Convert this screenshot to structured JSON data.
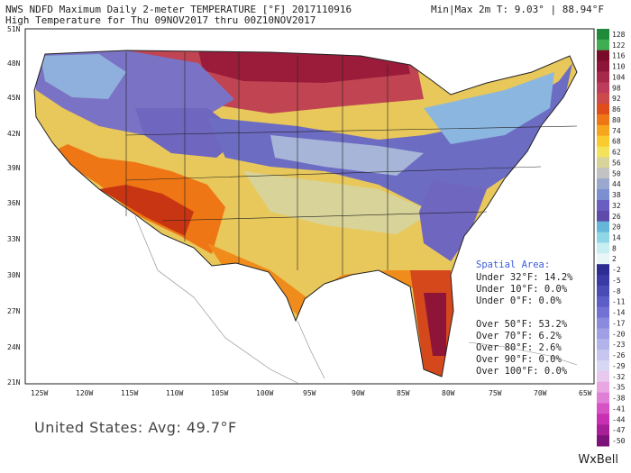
{
  "header": {
    "line1": "NWS NDFD Maximum Daily 2-meter TEMPERATURE [°F] 2017110916",
    "line2": "High Temperature for Thu 09NOV2017 thru 00Z10NOV2017",
    "minmax": "Min|Max 2m T: 9.03° | 88.94°F"
  },
  "axes": {
    "lat_labels": [
      "51N",
      "48N",
      "45N",
      "42N",
      "39N",
      "36N",
      "33N",
      "30N",
      "27N",
      "24N",
      "21N"
    ],
    "lon_labels": [
      "125W",
      "120W",
      "115W",
      "110W",
      "105W",
      "100W",
      "95W",
      "90W",
      "85W",
      "80W",
      "75W",
      "70W",
      "65W"
    ]
  },
  "colorbar": {
    "labels": [
      "128",
      "122",
      "116",
      "110",
      "104",
      "98",
      "92",
      "86",
      "80",
      "74",
      "68",
      "62",
      "56",
      "50",
      "44",
      "38",
      "32",
      "26",
      "20",
      "14",
      "8",
      "2",
      "-2",
      "-5",
      "-8",
      "-11",
      "-14",
      "-17",
      "-20",
      "-23",
      "-26",
      "-29",
      "-32",
      "-35",
      "-38",
      "-41",
      "-44",
      "-47",
      "-50"
    ],
    "colors": [
      "#1f8a3a",
      "#3fae52",
      "#7a0a28",
      "#8e1537",
      "#a6284a",
      "#bd3b5b",
      "#cd4a4a",
      "#e04d1a",
      "#ef7615",
      "#f7a51e",
      "#f9cb2e",
      "#f4e35a",
      "#d8d398",
      "#c2c2c2",
      "#9aa7cf",
      "#7c8fd1",
      "#6a5fc0",
      "#5e4aa8",
      "#64b7d9",
      "#8fd6e6",
      "#c8eef2",
      "#e9f6f7",
      "#2c2c93",
      "#3a3aa6",
      "#4b4bb8",
      "#5d5dc7",
      "#7272d4",
      "#8a8adf",
      "#9f9fe6",
      "#b3b3ec",
      "#c6c6f0",
      "#d7d7f3",
      "#e8c8ee",
      "#e8a6e3",
      "#e07fd6",
      "#d752c4",
      "#c92fb2",
      "#a82098",
      "#7d137a"
    ]
  },
  "spatial_area": {
    "title": "Spatial Area:",
    "lines": [
      "Under 32°F: 14.2%",
      "Under 10°F: 0.0%",
      "Under 0°F: 0.0%",
      "",
      "Over 50°F: 53.2%",
      "Over 70°F: 6.2%",
      "Over 80°F: 2.6%",
      "Over 90°F: 0.0%",
      "Over 100°F: 0.0%"
    ]
  },
  "footer": {
    "average": "United States: Avg: 49.7°F",
    "brand": "WxBell"
  }
}
